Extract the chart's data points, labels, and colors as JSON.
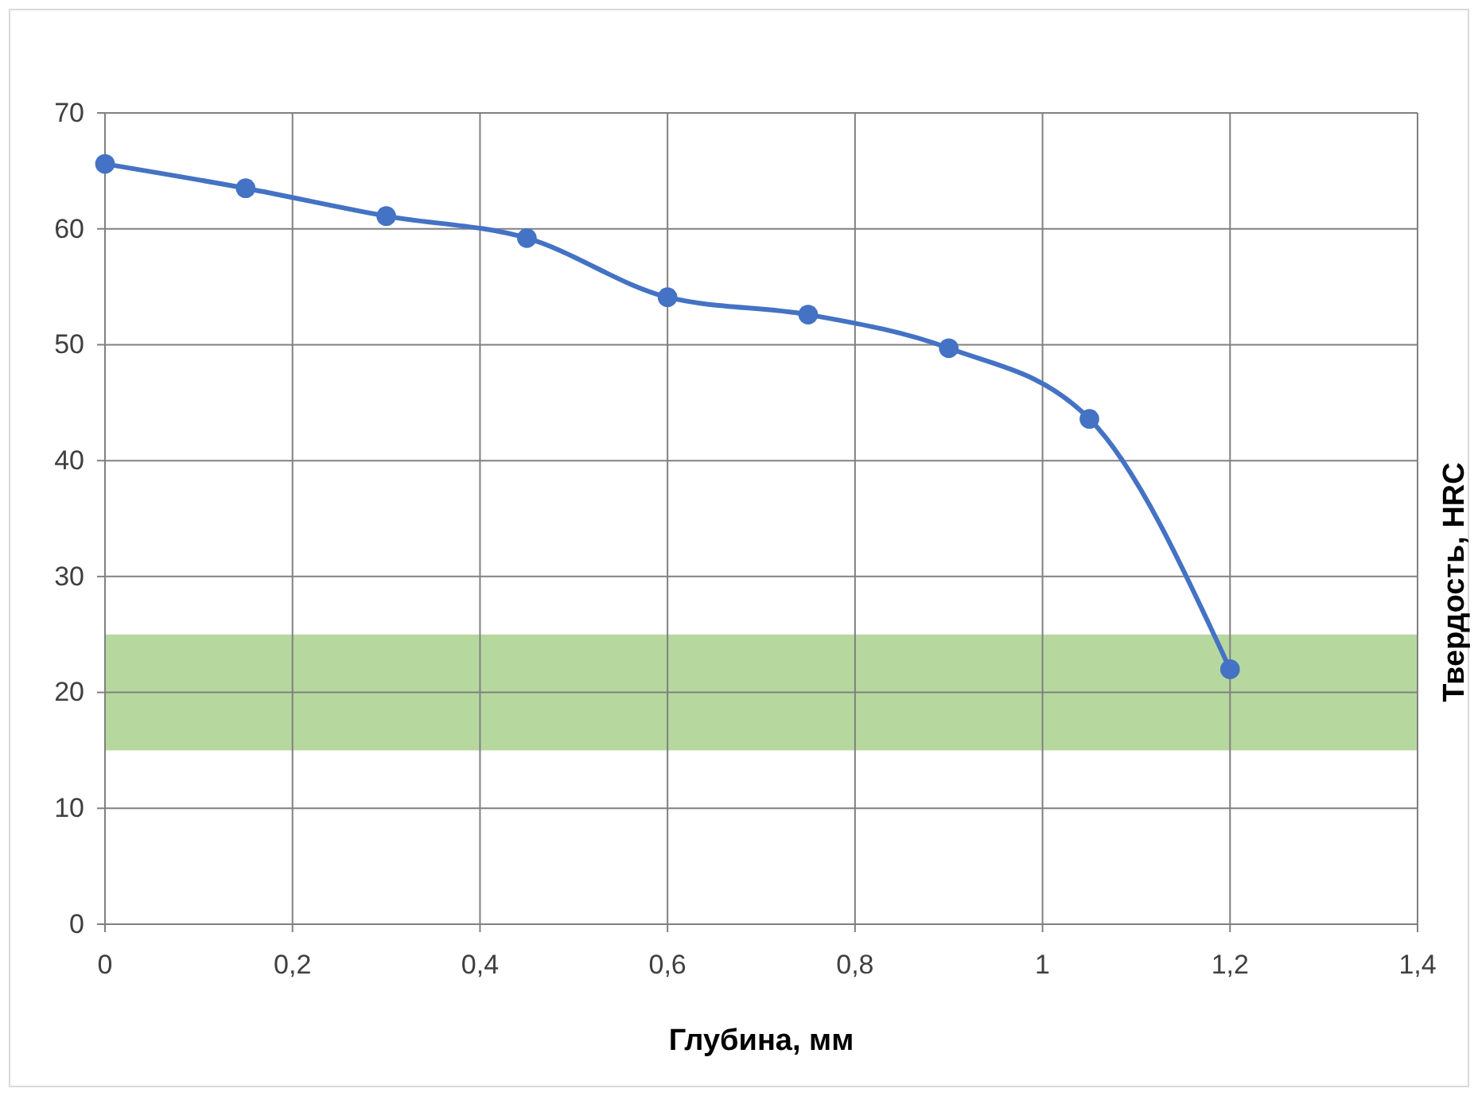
{
  "chart_data": {
    "type": "line",
    "xlabel": "Глубина, мм",
    "ylabel": "Твердость, HRC",
    "x": [
      0,
      0.15,
      0.3,
      0.45,
      0.6,
      0.75,
      0.9,
      1.05,
      1.2
    ],
    "series": [
      {
        "color": "#4472c4",
        "values": [
          65.6,
          63.5,
          61.1,
          59.2,
          54.1,
          52.6,
          49.7,
          43.6,
          22
        ]
      }
    ],
    "xlim": [
      0,
      1.4
    ],
    "xticks": [
      0,
      {
        "value": 0.2,
        "label": "0,2"
      },
      {
        "value": 0.4,
        "label": "0,4"
      },
      {
        "value": 0.6,
        "label": "0,6"
      },
      {
        "value": 0.8,
        "label": "0,8"
      },
      1,
      {
        "value": 1.2,
        "label": "1,2"
      },
      {
        "value": 1.4,
        "label": "1,4"
      }
    ],
    "ylim": [
      0,
      70
    ],
    "yticks": [
      0,
      10,
      20,
      30,
      40,
      50,
      60,
      70
    ],
    "bands": [
      {
        "axis": "y",
        "from": 15,
        "to": 25,
        "color": "#a9d18e"
      }
    ],
    "grid": true,
    "marker": "circle",
    "line_style": "solid"
  }
}
